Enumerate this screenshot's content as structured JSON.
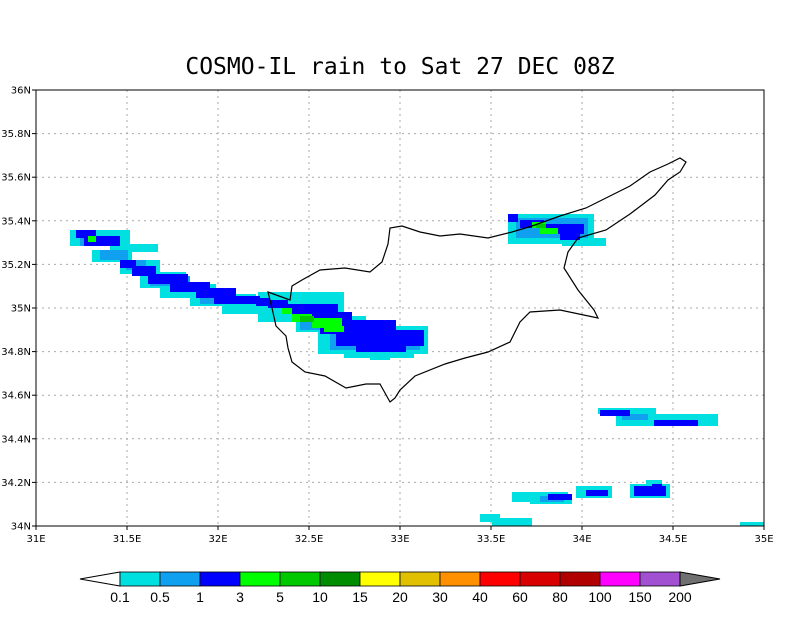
{
  "title": "COSMO-IL rain to Sat 27 DEC 08Z",
  "map": {
    "lon_range": [
      31,
      35
    ],
    "lat_range": [
      34,
      36
    ],
    "lon_ticks": [
      "31E",
      "31.5E",
      "32E",
      "32.5E",
      "33E",
      "33.5E",
      "34E",
      "34.5E",
      "35E"
    ],
    "lat_ticks": [
      "34N",
      "34.2N",
      "34.4N",
      "34.6N",
      "34.8N",
      "35N",
      "35.2N",
      "35.4N",
      "35.6N",
      "35.8N",
      "36N"
    ],
    "grid": "dotted"
  },
  "colorbar": {
    "colors": [
      "#00e0e0",
      "#10a0f0",
      "#0000ff",
      "#00ff00",
      "#00c800",
      "#008c00",
      "#ffff00",
      "#e0c000",
      "#ff9000",
      "#ff0000",
      "#d80000",
      "#b00000",
      "#ff00ff",
      "#a050d0"
    ],
    "over_color": "#707070",
    "labels": [
      "0.1",
      "0.5",
      "1",
      "3",
      "5",
      "10",
      "15",
      "20",
      "30",
      "40",
      "60",
      "80",
      "100",
      "150",
      "200"
    ]
  }
}
